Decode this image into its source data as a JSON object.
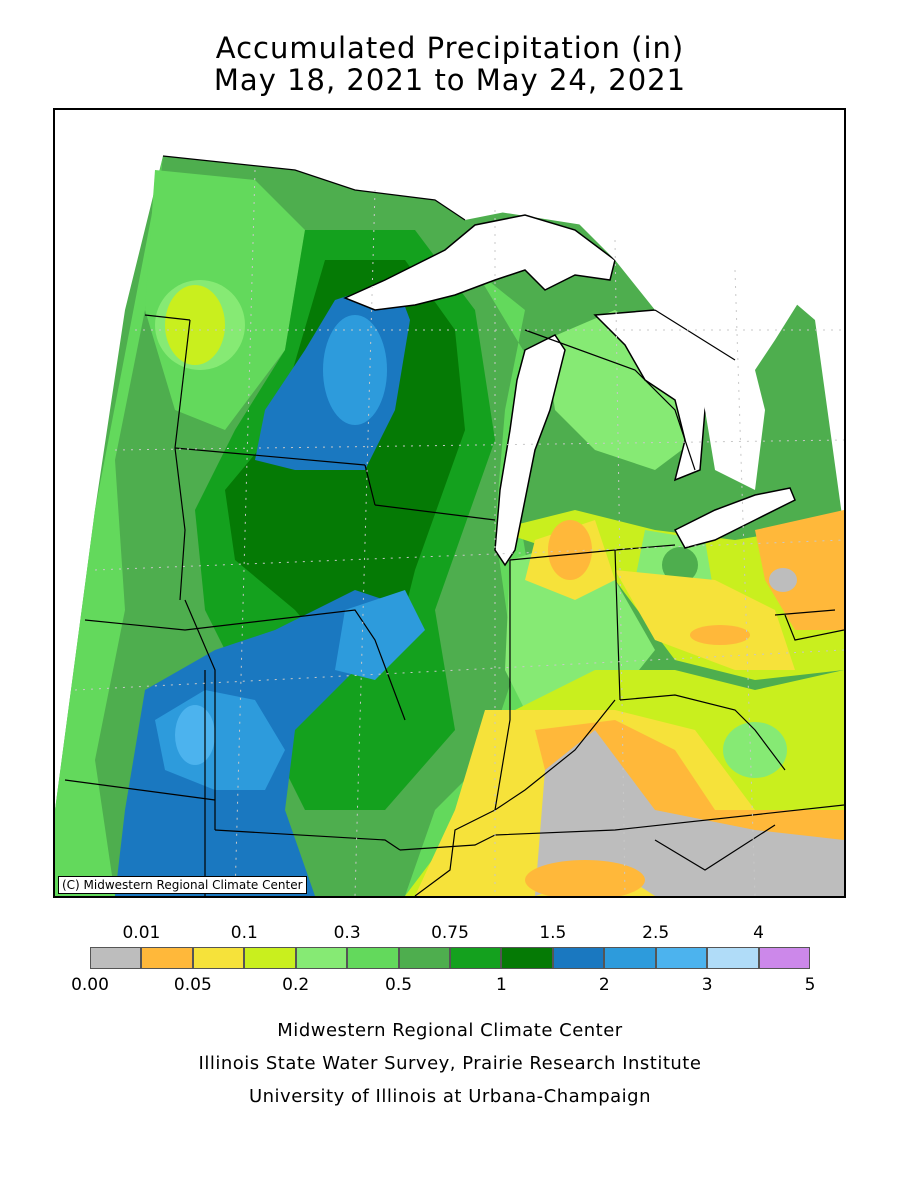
{
  "header": {
    "title_line1": "Accumulated Precipitation (in)",
    "title_line2": "May 18, 2021 to May 24, 2021"
  },
  "map": {
    "copyright": "(C) Midwestern Regional Climate Center",
    "colors": {
      "none": "#bdbdbd",
      "c001": "#ffb83a",
      "c005": "#f6e23a",
      "c01": "#c9ef1e",
      "c02": "#86ea74",
      "c03": "#63d95c",
      "c05": "#4eae4e",
      "c075": "#14a11e",
      "c1": "#057a05",
      "c15": "#1a78c0",
      "c2": "#2d9bdc",
      "c25": "#4cb3ee",
      "c3": "#b0dcf8",
      "c4": "#cc88ea",
      "water": "#ffffff",
      "border": "#000000"
    }
  },
  "legend": {
    "upper_labels": [
      "0.01",
      "0.1",
      "0.3",
      "0.75",
      "1.5",
      "2.5",
      "4"
    ],
    "lower_labels": [
      "0.00",
      "0.05",
      "0.2",
      "0.5",
      "1",
      "2",
      "3",
      "5"
    ],
    "colors": [
      "#bdbdbd",
      "#ffb83a",
      "#f6e23a",
      "#c9ef1e",
      "#86ea74",
      "#63d95c",
      "#4eae4e",
      "#14a11e",
      "#057a05",
      "#1a78c0",
      "#2d9bdc",
      "#4cb3ee",
      "#b0dcf8",
      "#cc88ea"
    ]
  },
  "credits": {
    "line1": "Midwestern Regional Climate Center",
    "line2": "Illinois State Water Survey, Prairie Research Institute",
    "line3": "University of Illinois at Urbana-Champaign"
  }
}
